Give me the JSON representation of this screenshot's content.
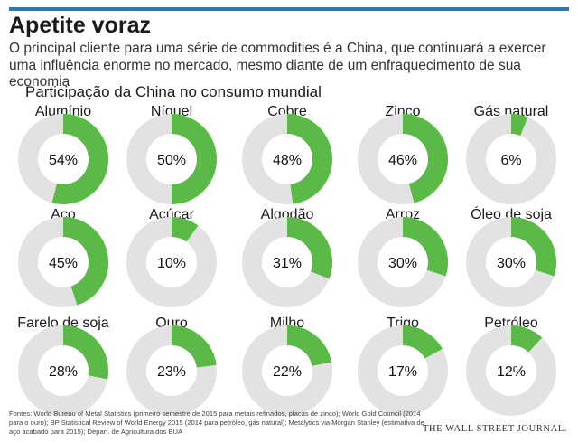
{
  "header": {
    "title": "Apetite voraz",
    "subtitle": "O principal cliente para uma série de commodities é a China, que continuará a exercer uma influência enorme no mercado, mesmo diante de um enfraquecimento de sua economia"
  },
  "colors": {
    "accent_bar": "#2a7ab8",
    "share": "#5ab947",
    "remainder": "#e2e2e2"
  },
  "chart_data": {
    "type": "pie",
    "variant": "donut",
    "title": "Participação da China no consumo mundial",
    "unit": "%",
    "items": [
      {
        "label": "Alumínio",
        "value": 54,
        "value_label": "54%"
      },
      {
        "label": "Níquel",
        "value": 50,
        "value_label": "50%"
      },
      {
        "label": "Cobre",
        "value": 48,
        "value_label": "48%"
      },
      {
        "label": "Zinco",
        "value": 46,
        "value_label": "46%"
      },
      {
        "label": "Gás natural",
        "value": 6,
        "value_label": "6%"
      },
      {
        "label": "Aço",
        "value": 45,
        "value_label": "45%"
      },
      {
        "label": "Açúcar",
        "value": 10,
        "value_label": "10%"
      },
      {
        "label": "Algodão",
        "value": 31,
        "value_label": "31%"
      },
      {
        "label": "Arroz",
        "value": 30,
        "value_label": "30%"
      },
      {
        "label": "Óleo de soja",
        "value": 30,
        "value_label": "30%"
      },
      {
        "label": "Farelo de soja",
        "value": 28,
        "value_label": "28%"
      },
      {
        "label": "Ouro",
        "value": 23,
        "value_label": "23%"
      },
      {
        "label": "Milho",
        "value": 22,
        "value_label": "22%"
      },
      {
        "label": "Trigo",
        "value": 17,
        "value_label": "17%"
      },
      {
        "label": "Petróleo",
        "value": 12,
        "value_label": "12%"
      }
    ]
  },
  "footer": {
    "sources": "Fontes: World Bureau of Metal Statistics (primeiro semestre de 2015 para metais refinados, placas de zinco); World Gold Council (2014 para o ouro); BP Statistical Review of World Energy 2015 (2014 para petróleo, gás natural); Metalytics via Morgan Stanley (estimativa de aço acabado para 2015); Depart. de Agricultura dos EUA",
    "brand": "THE WALL STREET JOURNAL."
  }
}
